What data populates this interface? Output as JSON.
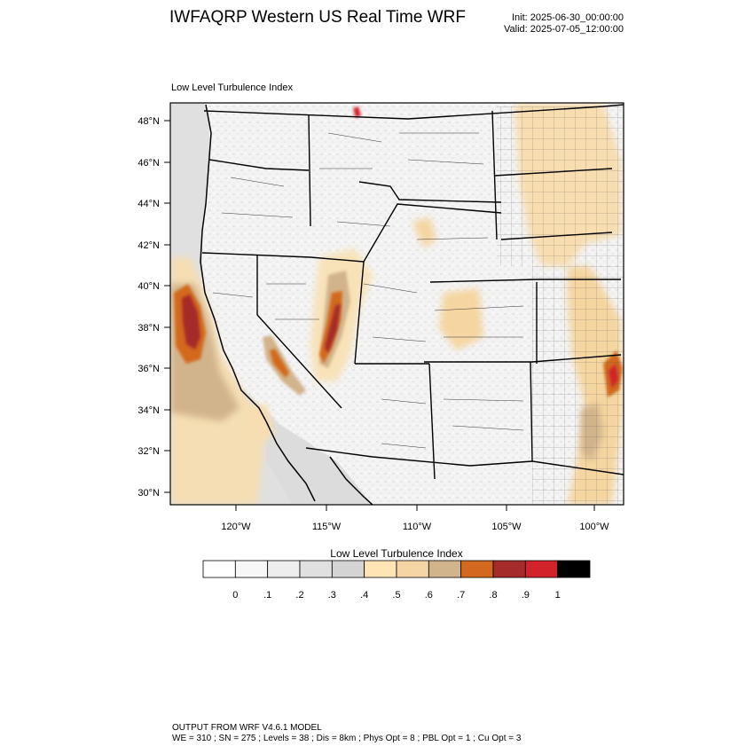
{
  "header": {
    "title": "IWFAQRP Western US Real Time WRF",
    "init": "Init: 2025-06-30_00:00:00",
    "valid": "Valid: 2025-07-05_12:00:00"
  },
  "map": {
    "field_name": "Low Level Turbulence Index",
    "lat_ticks": [
      "48°N",
      "46°N",
      "44°N",
      "42°N",
      "40°N",
      "38°N",
      "36°N",
      "34°N",
      "32°N",
      "30°N"
    ],
    "lon_ticks": [
      "120°W",
      "115°W",
      "110°W",
      "105°W",
      "100°W"
    ],
    "projection": "lambert conformal",
    "ocean_color": "#e0e0e0",
    "land_color": "#f4f4f4"
  },
  "colorbar": {
    "title": "Low Level Turbulence Index",
    "labels": [
      "0",
      ".1",
      ".2",
      ".3",
      ".4",
      ".5",
      ".6",
      ".7",
      ".8",
      ".9",
      "1"
    ],
    "colors": [
      "#ffffff",
      "#f7f7f7",
      "#eeeeee",
      "#e0e0e0",
      "#d4d4d4",
      "#ffe4b5",
      "#f5d5a5",
      "#d2b48c",
      "#d2691e",
      "#a52a2a",
      "#d3232a",
      "#000000"
    ]
  },
  "footer": {
    "line1": "OUTPUT FROM WRF V4.6.1 MODEL",
    "line2": "WE = 310 ; SN = 275 ; Levels = 38 ; Dis = 8km ; Phys Opt = 8 ; PBL Opt = 1 ; Cu Opt = 3"
  }
}
